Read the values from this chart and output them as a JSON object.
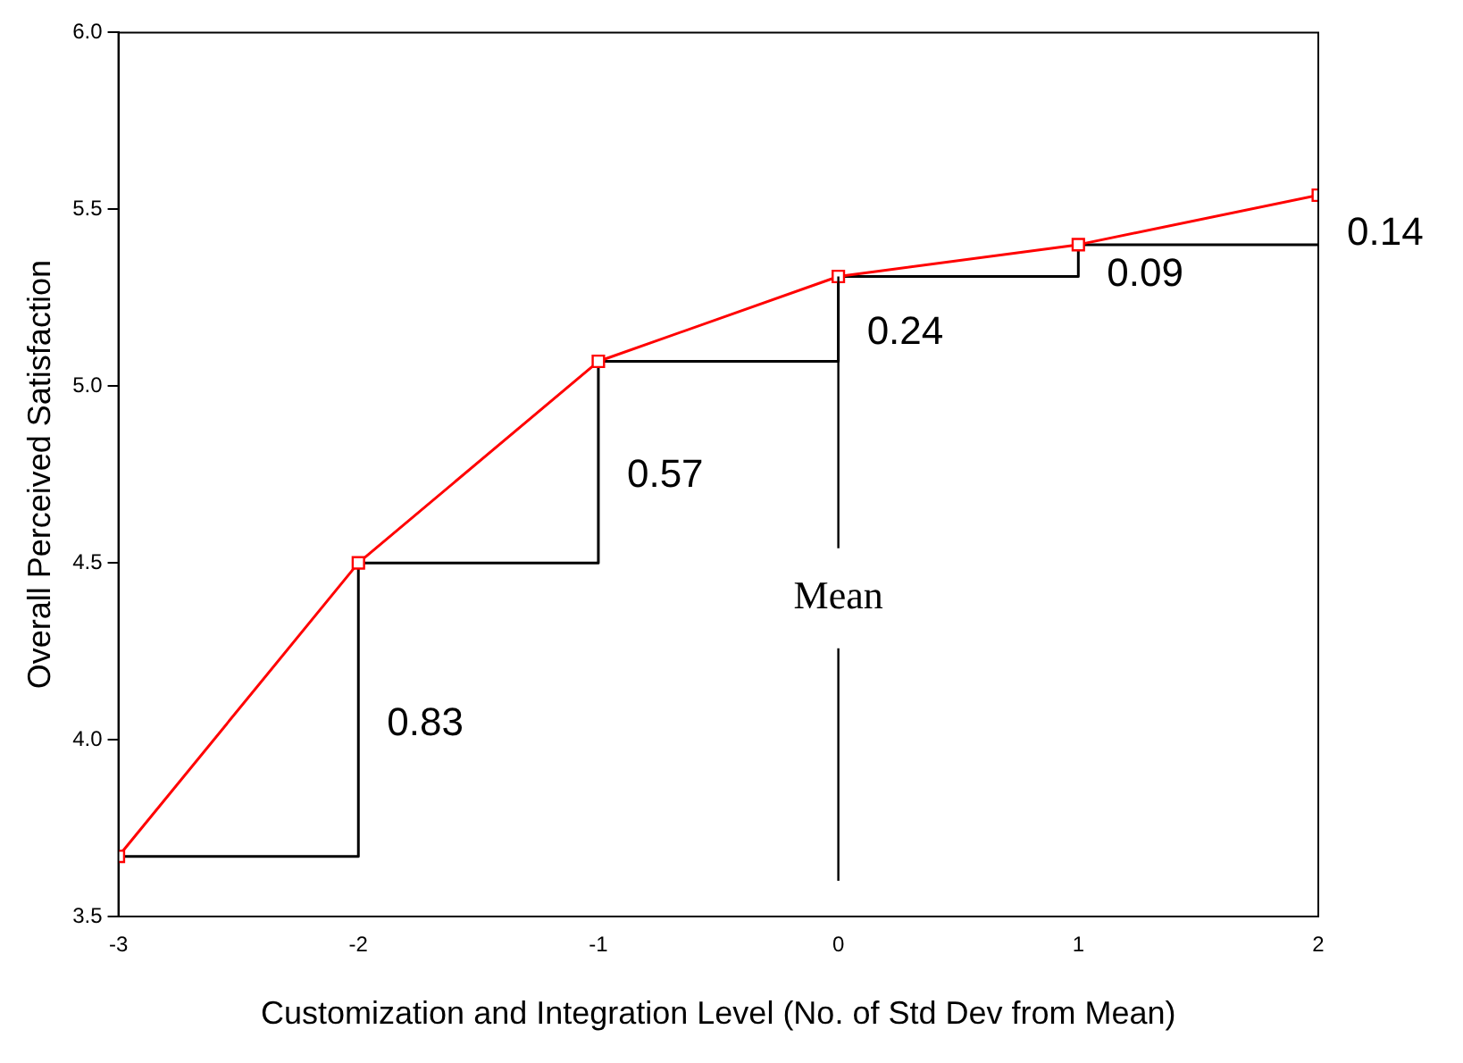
{
  "chart_data": {
    "type": "line",
    "xlabel": "Customization and Integration Level (No. of Std Dev from Mean)",
    "ylabel": "Overall Perceived Satisfaction",
    "x": [
      -3,
      -2,
      -1,
      0,
      1,
      2
    ],
    "series": [
      {
        "type": "line",
        "color": "#ff0000",
        "marker": "square",
        "values": [
          3.67,
          4.5,
          5.07,
          5.31,
          5.4,
          5.54
        ]
      },
      {
        "type": "step",
        "color": "#000000",
        "marker": "none",
        "values": [
          3.67,
          4.5,
          5.07,
          5.31,
          5.4,
          5.4
        ]
      }
    ],
    "xlim": [
      -3,
      2
    ],
    "xticks": [
      -3,
      -2,
      -1,
      0,
      1,
      2
    ],
    "ylim": [
      3.5,
      6.0
    ],
    "yticks": [
      {
        "value": 3.5,
        "label": "3.5"
      },
      {
        "value": 4,
        "label": "4.0"
      },
      {
        "value": 4.5,
        "label": "4.5"
      },
      {
        "value": 5,
        "label": "5.0"
      },
      {
        "value": 5.5,
        "label": "5.5"
      },
      {
        "value": 6,
        "label": "6.0"
      }
    ],
    "grid": false,
    "legend": false,
    "ref_lines": [
      {
        "axis": "x",
        "value": 0,
        "label": "Mean",
        "color": "#000000"
      }
    ],
    "annotations": [
      "0.83",
      "0.57",
      "0.24",
      "0.09",
      "0.14"
    ]
  }
}
